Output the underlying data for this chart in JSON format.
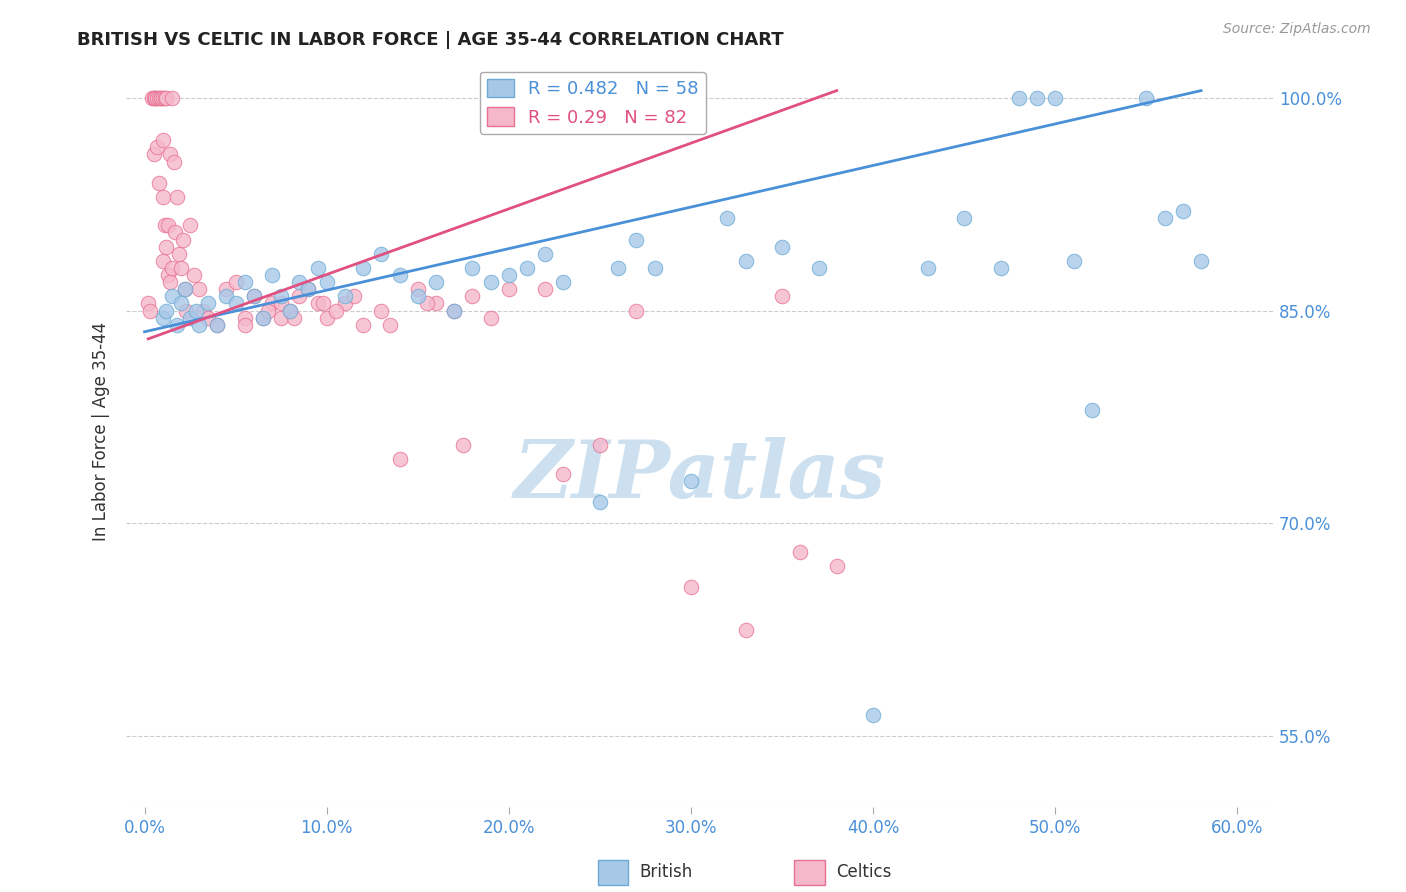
{
  "title": "BRITISH VS CELTIC IN LABOR FORCE | AGE 35-44 CORRELATION CHART",
  "source": "Source: ZipAtlas.com",
  "ylabel": "In Labor Force | Age 35-44",
  "x_tick_labels": [
    "0.0%",
    "10.0%",
    "20.0%",
    "30.0%",
    "40.0%",
    "50.0%",
    "60.0%"
  ],
  "x_tick_values": [
    0.0,
    10.0,
    20.0,
    30.0,
    40.0,
    50.0,
    60.0
  ],
  "y_tick_labels": [
    "55.0%",
    "70.0%",
    "85.0%",
    "100.0%"
  ],
  "y_tick_values": [
    55.0,
    70.0,
    85.0,
    100.0
  ],
  "xlim": [
    -1.0,
    62.0
  ],
  "ylim": [
    50.0,
    103.0
  ],
  "legend_blue_label": "British",
  "legend_pink_label": "Celtics",
  "R_blue": 0.482,
  "N_blue": 58,
  "R_pink": 0.29,
  "N_pink": 82,
  "blue_color": "#a8c8e8",
  "blue_edge_color": "#6aaad4",
  "blue_line_color": "#4a90d9",
  "pink_color": "#f5b8cb",
  "pink_edge_color": "#e87090",
  "pink_line_color": "#e05080",
  "grid_color": "#cccccc",
  "background_color": "#ffffff",
  "watermark_color": "#cce0f0",
  "british_x": [
    1.0,
    1.2,
    1.5,
    1.8,
    2.0,
    2.2,
    2.5,
    2.8,
    3.0,
    3.5,
    4.0,
    4.5,
    5.0,
    5.5,
    6.0,
    6.5,
    7.0,
    7.5,
    8.0,
    8.5,
    9.0,
    9.5,
    10.0,
    11.0,
    12.0,
    13.0,
    14.0,
    15.0,
    16.0,
    17.0,
    18.0,
    19.0,
    20.0,
    21.0,
    22.0,
    23.0,
    25.0,
    26.0,
    27.0,
    28.0,
    30.0,
    32.0,
    33.0,
    35.0,
    37.0,
    40.0,
    43.0,
    45.0,
    47.0,
    48.0,
    49.0,
    50.0,
    51.0,
    52.0,
    55.0,
    56.0,
    57.0,
    58.0
  ],
  "british_y": [
    84.5,
    85.0,
    86.0,
    84.0,
    85.5,
    86.5,
    84.5,
    85.0,
    84.0,
    85.5,
    84.0,
    86.0,
    85.5,
    87.0,
    86.0,
    84.5,
    87.5,
    86.0,
    85.0,
    87.0,
    86.5,
    88.0,
    87.0,
    86.0,
    88.0,
    89.0,
    87.5,
    86.0,
    87.0,
    85.0,
    88.0,
    87.0,
    87.5,
    88.0,
    89.0,
    87.0,
    71.5,
    88.0,
    90.0,
    88.0,
    73.0,
    91.5,
    88.5,
    89.5,
    88.0,
    56.5,
    88.0,
    91.5,
    88.0,
    100.0,
    100.0,
    100.0,
    88.5,
    78.0,
    100.0,
    91.5,
    92.0,
    88.5
  ],
  "celtics_x": [
    0.2,
    0.3,
    0.4,
    0.5,
    0.5,
    0.6,
    0.6,
    0.7,
    0.7,
    0.8,
    0.8,
    0.9,
    0.9,
    1.0,
    1.0,
    1.0,
    1.0,
    1.1,
    1.1,
    1.2,
    1.2,
    1.3,
    1.3,
    1.4,
    1.4,
    1.5,
    1.5,
    1.6,
    1.7,
    1.8,
    1.9,
    2.0,
    2.1,
    2.2,
    2.3,
    2.5,
    2.7,
    3.0,
    3.2,
    3.5,
    4.0,
    4.5,
    5.0,
    5.5,
    6.0,
    6.5,
    7.0,
    7.5,
    8.0,
    8.5,
    9.0,
    9.5,
    10.0,
    11.0,
    12.0,
    13.0,
    14.0,
    15.0,
    16.0,
    17.0,
    18.0,
    19.0,
    20.0,
    22.0,
    23.0,
    25.0,
    27.0,
    30.0,
    33.0,
    35.0,
    36.0,
    38.0,
    5.5,
    7.5,
    6.8,
    8.2,
    10.5,
    9.8,
    11.5,
    13.5,
    15.5,
    17.5
  ],
  "celtics_y": [
    85.5,
    85.0,
    100.0,
    100.0,
    96.0,
    100.0,
    100.0,
    100.0,
    96.5,
    100.0,
    94.0,
    100.0,
    100.0,
    100.0,
    97.0,
    93.0,
    88.5,
    100.0,
    91.0,
    100.0,
    89.5,
    91.0,
    87.5,
    96.0,
    87.0,
    100.0,
    88.0,
    95.5,
    90.5,
    93.0,
    89.0,
    88.0,
    90.0,
    86.5,
    85.0,
    91.0,
    87.5,
    86.5,
    85.0,
    84.5,
    84.0,
    86.5,
    87.0,
    84.5,
    86.0,
    84.5,
    85.5,
    85.5,
    85.0,
    86.0,
    86.5,
    85.5,
    84.5,
    85.5,
    84.0,
    85.0,
    74.5,
    86.5,
    85.5,
    85.0,
    86.0,
    84.5,
    86.5,
    86.5,
    73.5,
    75.5,
    85.0,
    65.5,
    62.5,
    86.0,
    68.0,
    67.0,
    84.0,
    84.5,
    85.0,
    84.5,
    85.0,
    85.5,
    86.0,
    84.0,
    85.5,
    75.5
  ],
  "blue_trend_x0": 0.0,
  "blue_trend_y0": 83.5,
  "blue_trend_x1": 58.0,
  "blue_trend_y1": 100.5,
  "pink_trend_x0": 0.2,
  "pink_trend_y0": 83.0,
  "pink_trend_x1": 38.0,
  "pink_trend_y1": 100.5
}
